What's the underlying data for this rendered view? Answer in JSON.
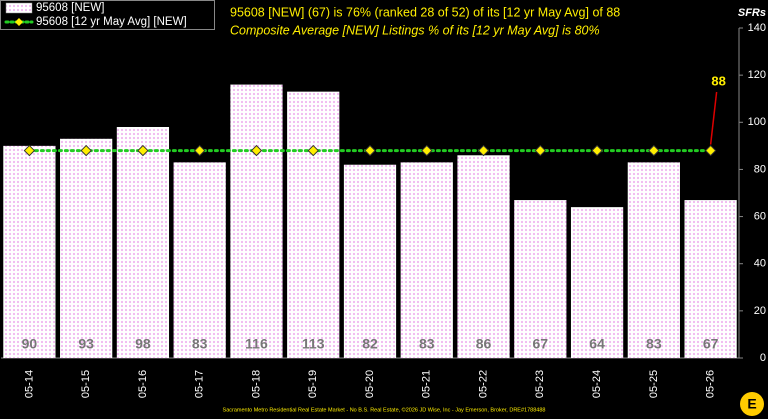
{
  "chart_data": {
    "type": "bar",
    "title": "95608 [NEW] (67) is 76% (ranked 28 of 52)  of its [12 yr May Avg] of 88",
    "subtitle": "Composite Average [NEW] Listings % of its [12 yr May Avg] is 80%",
    "y_axis_label": "SFRs",
    "footer": "Sacramento Metro Residential Real Estate Market - No B.S. Real Estate, ©2026 JD Wise, Inc - Jay Emerson, Broker, DRE#1788488",
    "annotation": "88",
    "categories": [
      "05-14",
      "05-15",
      "05-16",
      "05-17",
      "05-18",
      "05-19",
      "05-20",
      "05-21",
      "05-22",
      "05-23",
      "05-24",
      "05-25",
      "05-26"
    ],
    "series": [
      {
        "name": "95608 [NEW]",
        "type": "bar",
        "color": "#f0b8f0",
        "values": [
          90,
          93,
          98,
          83,
          116,
          113,
          82,
          83,
          86,
          67,
          64,
          83,
          67
        ]
      },
      {
        "name": "95608 [12 yr May Avg] [NEW]",
        "type": "line",
        "color": "#22cc22",
        "marker_color": "#ffee00",
        "values": [
          88,
          88,
          88,
          88,
          88,
          88,
          88,
          88,
          88,
          88,
          88,
          88,
          88
        ]
      }
    ],
    "ylim": [
      0,
      140
    ],
    "yticks": [
      0,
      20,
      40,
      60,
      80,
      100,
      120,
      140
    ],
    "grid": false,
    "legend": "upper left"
  }
}
